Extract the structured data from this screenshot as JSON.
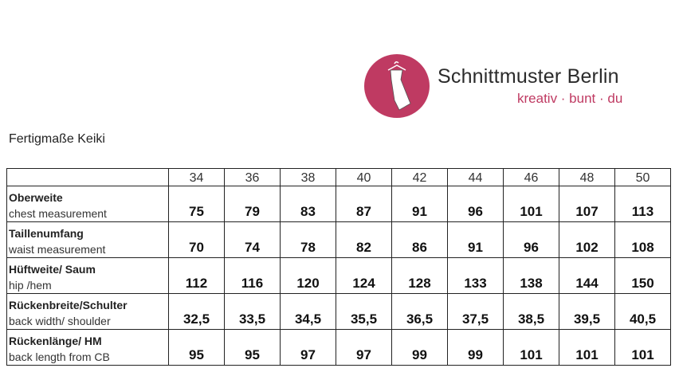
{
  "logo": {
    "brand": "Schnittmuster Berlin",
    "tagline": "kreativ · bunt · du",
    "color": "#bf3a62",
    "icon": "dress-on-hanger-icon"
  },
  "title": "Fertigmaße Keiki",
  "sizes": [
    "34",
    "36",
    "38",
    "40",
    "42",
    "44",
    "46",
    "48",
    "50"
  ],
  "rows": [
    {
      "de": "Oberweite",
      "en": "chest measurement",
      "values": [
        "75",
        "79",
        "83",
        "87",
        "91",
        "96",
        "101",
        "107",
        "113"
      ]
    },
    {
      "de": "Taillenumfang",
      "en": "waist measurement",
      "values": [
        "70",
        "74",
        "78",
        "82",
        "86",
        "91",
        "96",
        "102",
        "108"
      ]
    },
    {
      "de": "Hüftweite/ Saum",
      "en": "hip /hem",
      "values": [
        "112",
        "116",
        "120",
        "124",
        "128",
        "133",
        "138",
        "144",
        "150"
      ]
    },
    {
      "de": "Rückenbreite/Schulter",
      "en": "back width/ shoulder",
      "values": [
        "32,5",
        "33,5",
        "34,5",
        "35,5",
        "36,5",
        "37,5",
        "38,5",
        "39,5",
        "40,5"
      ]
    },
    {
      "de": "Rückenlänge/ HM",
      "en": "back length from CB",
      "values": [
        "95",
        "95",
        "97",
        "97",
        "99",
        "99",
        "101",
        "101",
        "101"
      ]
    }
  ]
}
